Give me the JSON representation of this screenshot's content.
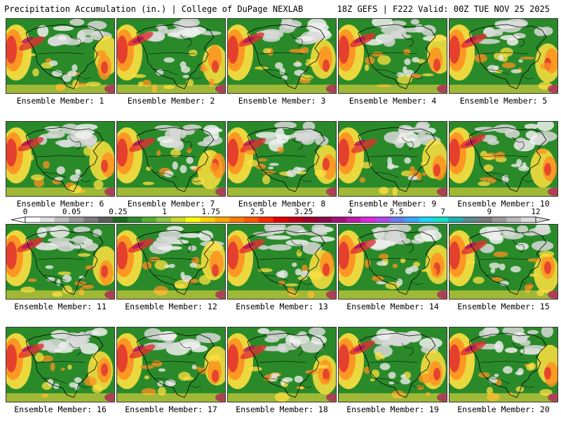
{
  "header": {
    "title_left": "Precipitation Accumulation (in.) | College of DuPage NEXLAB",
    "title_right": "18Z GEFS | F222 Valid: 00Z TUE NOV 25 2025"
  },
  "colors": {
    "ocean_base": "#2a8a2a",
    "land_base": "#3a9a3a",
    "heavy": "#e03030",
    "very_heavy": "#b01060",
    "moderate": "#ff9020",
    "light": "#ffe040",
    "trace": "#d8d8d8",
    "coast": "#000000"
  },
  "panels": [
    {
      "label": "Ensemble Member: 1"
    },
    {
      "label": "Ensemble Member: 2"
    },
    {
      "label": "Ensemble Member: 3"
    },
    {
      "label": "Ensemble Member: 4"
    },
    {
      "label": "Ensemble Member: 5"
    },
    {
      "label": "Ensemble Member: 6"
    },
    {
      "label": "Ensemble Member: 7"
    },
    {
      "label": "Ensemble Member: 8"
    },
    {
      "label": "Ensemble Member: 9"
    },
    {
      "label": "Ensemble Member: 10"
    },
    {
      "label": "Ensemble Member: 11"
    },
    {
      "label": "Ensemble Member: 12"
    },
    {
      "label": "Ensemble Member: 13"
    },
    {
      "label": "Ensemble Member: 14"
    },
    {
      "label": "Ensemble Member: 15"
    },
    {
      "label": "Ensemble Member: 16"
    },
    {
      "label": "Ensemble Member: 17"
    },
    {
      "label": "Ensemble Member: 18"
    },
    {
      "label": "Ensemble Member: 19"
    },
    {
      "label": "Ensemble Member: 20"
    }
  ],
  "colorbar": {
    "tick_labels": [
      "0",
      "0.05",
      "0.25",
      "1",
      "1.75",
      "2.5",
      "3.25",
      "4",
      "5.5",
      "7",
      "9",
      "12"
    ],
    "segment_colors": [
      "#ffffff",
      "#e0e0e0",
      "#bdbdbd",
      "#999999",
      "#7a7a7a",
      "#5e5e5e",
      "#1e6a1e",
      "#2e8b2e",
      "#55b030",
      "#8cc63f",
      "#c8d92a",
      "#ffff00",
      "#ffd400",
      "#ffa800",
      "#ff7d00",
      "#ff5a00",
      "#ff2a00",
      "#e00000",
      "#c0001a",
      "#a0002a",
      "#8c0a4a",
      "#a6107a",
      "#c01aa8",
      "#d82ad8",
      "#b04ae8",
      "#6a7af0",
      "#3aa6f5",
      "#19d6f5",
      "#14e0c8",
      "#20b0b0",
      "#5a8a8a",
      "#7a7a7a",
      "#9a9a9a",
      "#bababa",
      "#dadada"
    ]
  }
}
